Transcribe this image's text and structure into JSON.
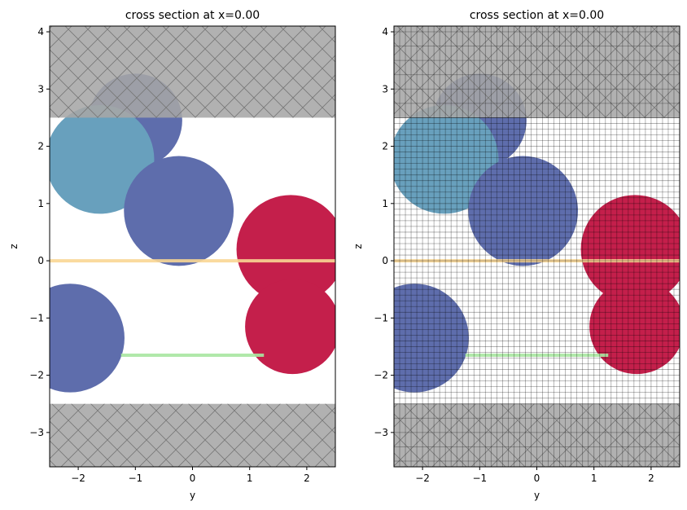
{
  "colors": {
    "blue": "#5e6dac",
    "lightblue": "#68a0bd",
    "red": "#c41f4b",
    "orange_line": "#f9d694",
    "green_line": "#a9e6a1",
    "pml": "#a6a6a6",
    "hatch": "#777777",
    "grid": "#000000"
  },
  "chart_data": [
    {
      "type": "scatter",
      "title": "cross section at x=0.00",
      "xlabel": "y",
      "ylabel": "z",
      "xlim": [
        -2.5,
        2.5
      ],
      "ylim": [
        -3.6,
        4.1
      ],
      "xticks": [
        -2,
        -1,
        0,
        1,
        2
      ],
      "xtick_labels": [
        "−2",
        "−1",
        "0",
        "1",
        "2"
      ],
      "yticks": [
        -3,
        -2,
        -1,
        0,
        1,
        2,
        3,
        4
      ],
      "ytick_labels": [
        "−3",
        "−2",
        "−1",
        "0",
        "1",
        "2",
        "3",
        "4"
      ],
      "pml_regions": [
        {
          "z0": 2.5,
          "z1": 4.1
        },
        {
          "z0": -3.6,
          "z1": -2.5
        }
      ],
      "circles": [
        {
          "y": -1.0,
          "z": 2.45,
          "r": 0.82,
          "color": "blue"
        },
        {
          "y": -1.62,
          "z": 1.77,
          "r": 0.95,
          "color": "lightblue"
        },
        {
          "y": -0.24,
          "z": 0.87,
          "r": 0.96,
          "color": "blue"
        },
        {
          "y": 1.72,
          "z": 0.2,
          "r": 0.95,
          "color": "red"
        },
        {
          "y": 1.75,
          "z": -1.15,
          "r": 0.83,
          "color": "red"
        },
        {
          "y": -2.14,
          "z": -1.35,
          "r": 0.95,
          "color": "blue"
        }
      ],
      "lines": [
        {
          "y0": -2.5,
          "y1": 2.5,
          "z": 0.0,
          "color": "orange_line"
        },
        {
          "y0": -1.25,
          "y1": 1.25,
          "z": -1.65,
          "color": "green_line"
        }
      ],
      "show_grid_mesh": false
    },
    {
      "type": "scatter",
      "title": "cross section at x=0.00",
      "xlabel": "y",
      "ylabel": "z",
      "xlim": [
        -2.5,
        2.5
      ],
      "ylim": [
        -3.6,
        4.1
      ],
      "xticks": [
        -2,
        -1,
        0,
        1,
        2
      ],
      "xtick_labels": [
        "−2",
        "−1",
        "0",
        "1",
        "2"
      ],
      "yticks": [
        -3,
        -2,
        -1,
        0,
        1,
        2,
        3,
        4
      ],
      "ytick_labels": [
        "−3",
        "−2",
        "−1",
        "0",
        "1",
        "2",
        "3",
        "4"
      ],
      "pml_regions": [
        {
          "z0": 2.5,
          "z1": 4.1
        },
        {
          "z0": -3.6,
          "z1": -2.5
        }
      ],
      "circles": [
        {
          "y": -1.0,
          "z": 2.45,
          "r": 0.82,
          "color": "blue"
        },
        {
          "y": -1.62,
          "z": 1.77,
          "r": 0.95,
          "color": "lightblue"
        },
        {
          "y": -0.24,
          "z": 0.87,
          "r": 0.96,
          "color": "blue"
        },
        {
          "y": 1.72,
          "z": 0.2,
          "r": 0.95,
          "color": "red"
        },
        {
          "y": 1.75,
          "z": -1.15,
          "r": 0.83,
          "color": "red"
        },
        {
          "y": -2.14,
          "z": -1.35,
          "r": 0.95,
          "color": "blue"
        }
      ],
      "lines": [
        {
          "y0": -2.5,
          "y1": 2.5,
          "z": 0.0,
          "color": "orange_line"
        },
        {
          "y0": -1.25,
          "y1": 1.25,
          "z": -1.65,
          "color": "green_line"
        }
      ],
      "show_grid_mesh": true
    }
  ]
}
